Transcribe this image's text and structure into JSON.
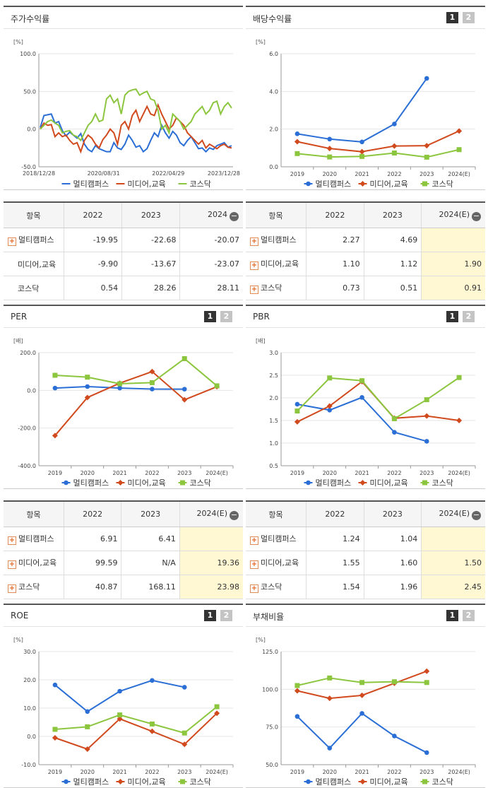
{
  "colors": {
    "multi": "#2b6fd6",
    "media": "#d14a1e",
    "kosdaq": "#8cc63f"
  },
  "panels": [
    {
      "title": "주가수익률",
      "buttons": false,
      "chart_data": {
        "type": "line",
        "unit": "[%]",
        "ylim": [
          -50,
          100
        ],
        "yticks": [
          "100.0",
          "50.0",
          "0.0",
          "-50.0"
        ],
        "xticks": [
          "2018/12/28",
          "2020/08/31",
          "2022/04/29",
          "2023/12/28"
        ],
        "legend": [
          "멀티캠퍼스",
          "미디어,교육",
          "코스닥"
        ],
        "series": [
          {
            "name": "멀티캠퍼스",
            "values": [
              2,
              18,
              19,
              20,
              8,
              10,
              -2,
              -9,
              -4,
              -8,
              -12,
              -6,
              -20,
              -27,
              -30,
              -22,
              -26,
              -28,
              -30,
              -30,
              -18,
              -25,
              -27,
              -20,
              -8,
              -15,
              -24,
              -22,
              -30,
              -26,
              -15,
              -5,
              -10,
              5,
              -5,
              -12,
              -3,
              -8,
              -18,
              -22,
              -15,
              -10,
              -18,
              -26,
              -25,
              -30,
              -25,
              -27,
              -22,
              -20,
              -18,
              -24,
              -22
            ]
          },
          {
            "name": "미디어,교육",
            "values": [
              0,
              8,
              5,
              6,
              -10,
              -5,
              -10,
              -8,
              -15,
              -20,
              -18,
              -30,
              -15,
              -8,
              -12,
              -20,
              -25,
              -14,
              -8,
              0,
              -5,
              -20,
              5,
              10,
              0,
              18,
              25,
              10,
              20,
              30,
              20,
              18,
              32,
              20,
              10,
              0,
              5,
              15,
              10,
              5,
              -5,
              -10,
              -15,
              -20,
              -15,
              -25,
              -20,
              -23,
              -26,
              -22,
              -20,
              -24,
              -25
            ]
          },
          {
            "name": "코스닥",
            "values": [
              0,
              5,
              10,
              12,
              8,
              5,
              -5,
              -3,
              -2,
              -8,
              -10,
              -15,
              -5,
              5,
              10,
              20,
              10,
              12,
              40,
              45,
              35,
              40,
              20,
              45,
              50,
              52,
              53,
              45,
              48,
              50,
              40,
              38,
              25,
              0,
              5,
              -5,
              20,
              15,
              10,
              0,
              5,
              10,
              20,
              25,
              30,
              20,
              25,
              35,
              37,
              20,
              30,
              35,
              28
            ]
          }
        ]
      }
    },
    {
      "title": "배당수익률",
      "buttons": true,
      "chart_data": {
        "type": "line",
        "unit": "[%]",
        "ylim": [
          0,
          6
        ],
        "yticks": [
          "6.0",
          "4.0",
          "2.0",
          "0.0"
        ],
        "categories": [
          "2019",
          "2020",
          "2021",
          "2022",
          "2023",
          "2024(E)"
        ],
        "legend": [
          "멀티캠퍼스",
          "미디어,교육",
          "코스닥"
        ],
        "series": [
          {
            "name": "멀티캠퍼스",
            "values": [
              1.75,
              1.47,
              1.32,
              2.27,
              4.69,
              null
            ]
          },
          {
            "name": "미디어,교육",
            "values": [
              1.33,
              0.97,
              0.8,
              1.1,
              1.12,
              1.9
            ]
          },
          {
            "name": "코스닥",
            "values": [
              0.7,
              0.52,
              0.55,
              0.73,
              0.51,
              0.91
            ]
          }
        ]
      }
    },
    {
      "title": "PER",
      "buttons": true,
      "chart_data": {
        "type": "line",
        "unit": "[배]",
        "ylim": [
          -400,
          200
        ],
        "yticks": [
          "200.0",
          "0.0",
          "-200.0",
          "-400.0"
        ],
        "categories": [
          "2019",
          "2020",
          "2021",
          "2022",
          "2023",
          "2024(E)"
        ],
        "legend": [
          "멀티캠퍼스",
          "미디어,교육",
          "코스닥"
        ],
        "series": [
          {
            "name": "멀티캠퍼스",
            "values": [
              12,
              20,
              12,
              6.91,
              6.41,
              null
            ]
          },
          {
            "name": "미디어,교육",
            "values": [
              -240,
              -38,
              38,
              99.59,
              -50,
              19.36
            ]
          },
          {
            "name": "코스닥",
            "values": [
              80,
              70,
              35,
              40.87,
              168.11,
              23.98
            ]
          }
        ]
      }
    },
    {
      "title": "PBR",
      "buttons": true,
      "chart_data": {
        "type": "line",
        "unit": "[배]",
        "ylim": [
          0.5,
          3.0
        ],
        "yticks": [
          "3.0",
          "2.5",
          "2.0",
          "1.5",
          "1.0",
          "0.5"
        ],
        "categories": [
          "2019",
          "2020",
          "2021",
          "2022",
          "2023",
          "2024(E)"
        ],
        "legend": [
          "멀티캠퍼스",
          "미디어,교육",
          "코스닥"
        ],
        "series": [
          {
            "name": "멀티캠퍼스",
            "values": [
              1.86,
              1.73,
              2.01,
              1.24,
              1.04,
              null
            ]
          },
          {
            "name": "미디어,교육",
            "values": [
              1.47,
              1.82,
              2.36,
              1.55,
              1.6,
              1.5
            ]
          },
          {
            "name": "코스닥",
            "values": [
              1.71,
              2.44,
              2.38,
              1.54,
              1.96,
              2.45
            ]
          }
        ]
      }
    },
    {
      "title": "ROE",
      "buttons": true,
      "chart_data": {
        "type": "line",
        "unit": "[%]",
        "ylim": [
          -10,
          30
        ],
        "yticks": [
          "30.0",
          "20.0",
          "10.0",
          "0.0",
          "-10.0"
        ],
        "categories": [
          "2019",
          "2020",
          "2021",
          "2022",
          "2023",
          "2024(E)"
        ],
        "legend": [
          "멀티캠퍼스",
          "미디어,교육",
          "코스닥"
        ],
        "series": [
          {
            "name": "멀티캠퍼스",
            "values": [
              18.2,
              8.8,
              16,
              19.8,
              17.4,
              null
            ]
          },
          {
            "name": "미디어,교육",
            "values": [
              -0.5,
              -4.5,
              6.2,
              1.8,
              -2.8,
              8.2
            ]
          },
          {
            "name": "코스닥",
            "values": [
              2.5,
              3.4,
              7.6,
              4.4,
              1.2,
              10.5
            ]
          }
        ]
      }
    },
    {
      "title": "부채비율",
      "buttons": true,
      "chart_data": {
        "type": "line",
        "unit": "[%]",
        "ylim": [
          50,
          125
        ],
        "yticks": [
          "125.0",
          "100.0",
          "75.0",
          "50.0"
        ],
        "categories": [
          "2019",
          "2020",
          "2021",
          "2022",
          "2023",
          "2024(E)"
        ],
        "legend": [
          "멀티캠퍼스",
          "미디어,교육",
          "코스닥"
        ],
        "series": [
          {
            "name": "멀티캠퍼스",
            "values": [
              82,
              61,
              84,
              69,
              58,
              null
            ]
          },
          {
            "name": "미디어,교육",
            "values": [
              99,
              94,
              96,
              104,
              112,
              null
            ]
          },
          {
            "name": "코스닥",
            "values": [
              102.5,
              107.5,
              104.5,
              105,
              104.5,
              null
            ]
          }
        ]
      }
    }
  ],
  "tables": [
    {
      "h0": "항목",
      "h1": "2022",
      "h2": "2023",
      "h3": "2024",
      "rows": [
        {
          "name": "멀티캠퍼스",
          "plus": true,
          "v": [
            "-19.95",
            "-22.68",
            "-20.07"
          ]
        },
        {
          "name": "미디어,교육",
          "plus": false,
          "v": [
            "-9.90",
            "-13.67",
            "-23.07"
          ]
        },
        {
          "name": "코스닥",
          "plus": false,
          "v": [
            "0.54",
            "28.26",
            "28.11"
          ]
        }
      ]
    },
    {
      "h0": "항목",
      "h1": "2022",
      "h2": "2023",
      "h3": "2024(E)",
      "rows": [
        {
          "name": "멀티캠퍼스",
          "plus": true,
          "v": [
            "2.27",
            "4.69",
            ""
          ]
        },
        {
          "name": "미디어,교육",
          "plus": true,
          "v": [
            "1.10",
            "1.12",
            "1.90"
          ]
        },
        {
          "name": "코스닥",
          "plus": true,
          "v": [
            "0.73",
            "0.51",
            "0.91"
          ]
        }
      ]
    },
    {
      "h0": "항목",
      "h1": "2022",
      "h2": "2023",
      "h3": "2024(E)",
      "rows": [
        {
          "name": "멀티캠퍼스",
          "plus": true,
          "v": [
            "6.91",
            "6.41",
            ""
          ]
        },
        {
          "name": "미디어,교육",
          "plus": true,
          "v": [
            "99.59",
            "N/A",
            "19.36"
          ]
        },
        {
          "name": "코스닥",
          "plus": true,
          "v": [
            "40.87",
            "168.11",
            "23.98"
          ]
        }
      ]
    },
    {
      "h0": "항목",
      "h1": "2022",
      "h2": "2023",
      "h3": "2024(E)",
      "rows": [
        {
          "name": "멀티캠퍼스",
          "plus": true,
          "v": [
            "1.24",
            "1.04",
            ""
          ]
        },
        {
          "name": "미디어,교육",
          "plus": true,
          "v": [
            "1.55",
            "1.60",
            "1.50"
          ]
        },
        {
          "name": "코스닥",
          "plus": true,
          "v": [
            "1.54",
            "1.96",
            "2.45"
          ]
        }
      ]
    }
  ],
  "buttons": {
    "b1": "1",
    "b2": "2",
    "minus": "−",
    "plus": "+"
  }
}
